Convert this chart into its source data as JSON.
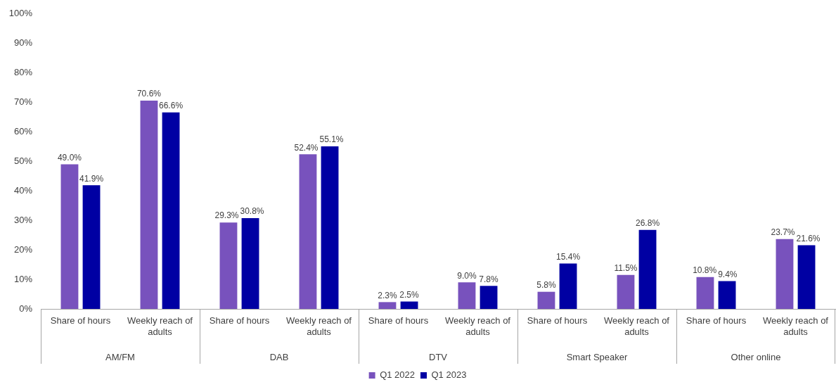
{
  "chart_data": {
    "type": "bar",
    "categories": [
      "Share of hours",
      "Weekly reach of adults",
      "Share of hours",
      "Weekly reach of adults",
      "Share of hours",
      "Weekly reach of adults",
      "Share of hours",
      "Weekly reach of adults",
      "Share of hours",
      "Weekly reach of adults"
    ],
    "annotations": [
      "AM/FM",
      "DAB",
      "DTV",
      "Smart Speaker",
      "Other online"
    ],
    "series": [
      {
        "name": "Q1 2022",
        "color": "#7852bd",
        "values": [
          49.0,
          70.6,
          29.3,
          52.4,
          2.3,
          9.0,
          5.8,
          11.5,
          10.8,
          23.7
        ],
        "value_labels": [
          "49.0%",
          "70.6%",
          "29.3%",
          "52.4%",
          "2.3%",
          "9.0%",
          "5.8%",
          "11.5%",
          "10.8%",
          "23.7%"
        ]
      },
      {
        "name": "Q1 2023",
        "color": "#0000a3",
        "values": [
          41.9,
          66.6,
          30.8,
          55.1,
          2.5,
          7.8,
          15.4,
          26.8,
          9.4,
          21.6
        ],
        "value_labels": [
          "41.9%",
          "66.6%",
          "30.8%",
          "55.1%",
          "2.5%",
          "7.8%",
          "15.4%",
          "26.8%",
          "9.4%",
          "21.6%"
        ]
      }
    ],
    "ylim": [
      0,
      100
    ],
    "yticks": [
      {
        "value": 0,
        "label": "0%"
      },
      {
        "value": 10,
        "label": "10%"
      },
      {
        "value": 20,
        "label": "20%"
      },
      {
        "value": 30,
        "label": "30%"
      },
      {
        "value": 40,
        "label": "40%"
      },
      {
        "value": 50,
        "label": "50%"
      },
      {
        "value": 60,
        "label": "60%"
      },
      {
        "value": 70,
        "label": "70%"
      },
      {
        "value": 80,
        "label": "80%"
      },
      {
        "value": 90,
        "label": "90%"
      },
      {
        "value": 100,
        "label": "100%"
      }
    ],
    "legend": "bottom"
  }
}
